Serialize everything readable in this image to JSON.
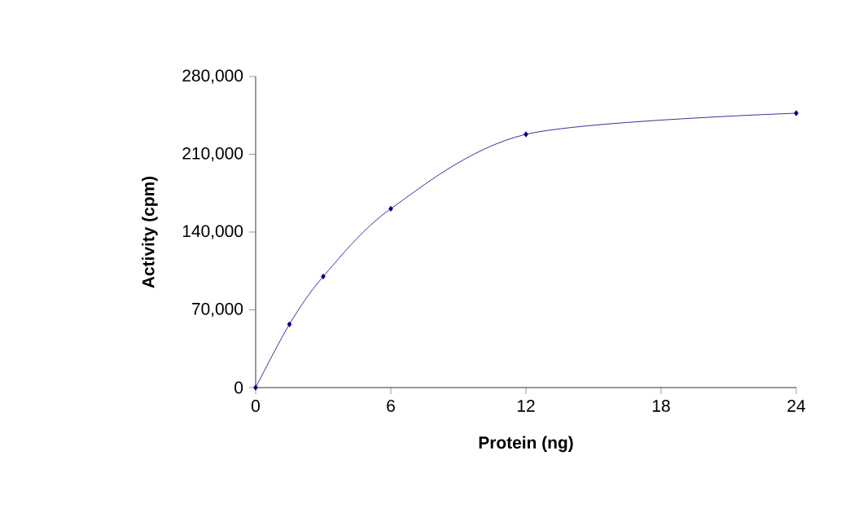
{
  "chart_data": {
    "type": "line",
    "xlabel": "Protein (ng)",
    "ylabel": "Activity (cpm)",
    "x": [
      0,
      1.5,
      3,
      6,
      12,
      24
    ],
    "series": [
      {
        "color": "#000080",
        "values": [
          0,
          57000,
          100000,
          161000,
          228000,
          247000
        ]
      }
    ],
    "xlim": [
      0,
      24
    ],
    "xticks": [
      0,
      6,
      12,
      18,
      24
    ],
    "ylim": [
      0,
      280000
    ],
    "yticks": [
      {
        "value": 0,
        "label": "0"
      },
      {
        "value": 70000,
        "label": "70,000"
      },
      {
        "value": 140000,
        "label": "140,000"
      },
      {
        "value": 210000,
        "label": "210,000"
      },
      {
        "value": 280000,
        "label": "280,000"
      }
    ],
    "marker": "diamond",
    "line_style": "solid",
    "grid": false
  }
}
